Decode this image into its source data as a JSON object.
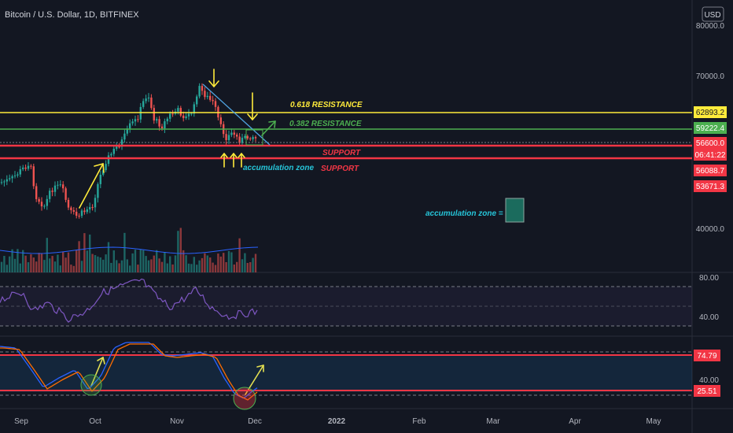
{
  "header": {
    "title": "Bitcoin / U.S. Dollar, 1D, BITFINEX"
  },
  "currency_button": "USD",
  "main_axis": {
    "ticks": [
      "80000.0",
      "70000.0",
      "40000.0"
    ]
  },
  "rsi_axis": {
    "ticks": [
      "80.00",
      "40.00"
    ]
  },
  "stoch_axis": {
    "ticks": [
      "40.00"
    ]
  },
  "time_axis": {
    "labels": [
      "Sep",
      "Oct",
      "Nov",
      "Dec",
      "2022",
      "Feb",
      "Mar",
      "Apr",
      "May"
    ]
  },
  "price_badges": {
    "resistance_618": "62893.2",
    "resistance_382": "59222.4",
    "last_price": "56600.0",
    "countdown": "06:41:22",
    "support_1": "56088.7",
    "support_2": "53671.3"
  },
  "stoch_badges": {
    "upper": "74.79",
    "lower": "25.51"
  },
  "annotations": {
    "resistance_618": "0.618 RESISTANCE",
    "resistance_382": "0.382 RESISTANCE",
    "support_1": "SUPPORT",
    "support_2": "SUPPORT",
    "accumulation": "accumulation zone",
    "legend": "accumulation zone ="
  },
  "colors": {
    "background": "#131722",
    "up": "#26a69a",
    "down": "#ef5350",
    "resistance_618": "#ffeb3b",
    "resistance_382": "#4caf50",
    "support": "#f23645",
    "rsi": "#7e57c2",
    "stoch_k": "#2962ff",
    "stoch_d": "#ff6d00",
    "accumulation": "#1b6b5d"
  }
}
